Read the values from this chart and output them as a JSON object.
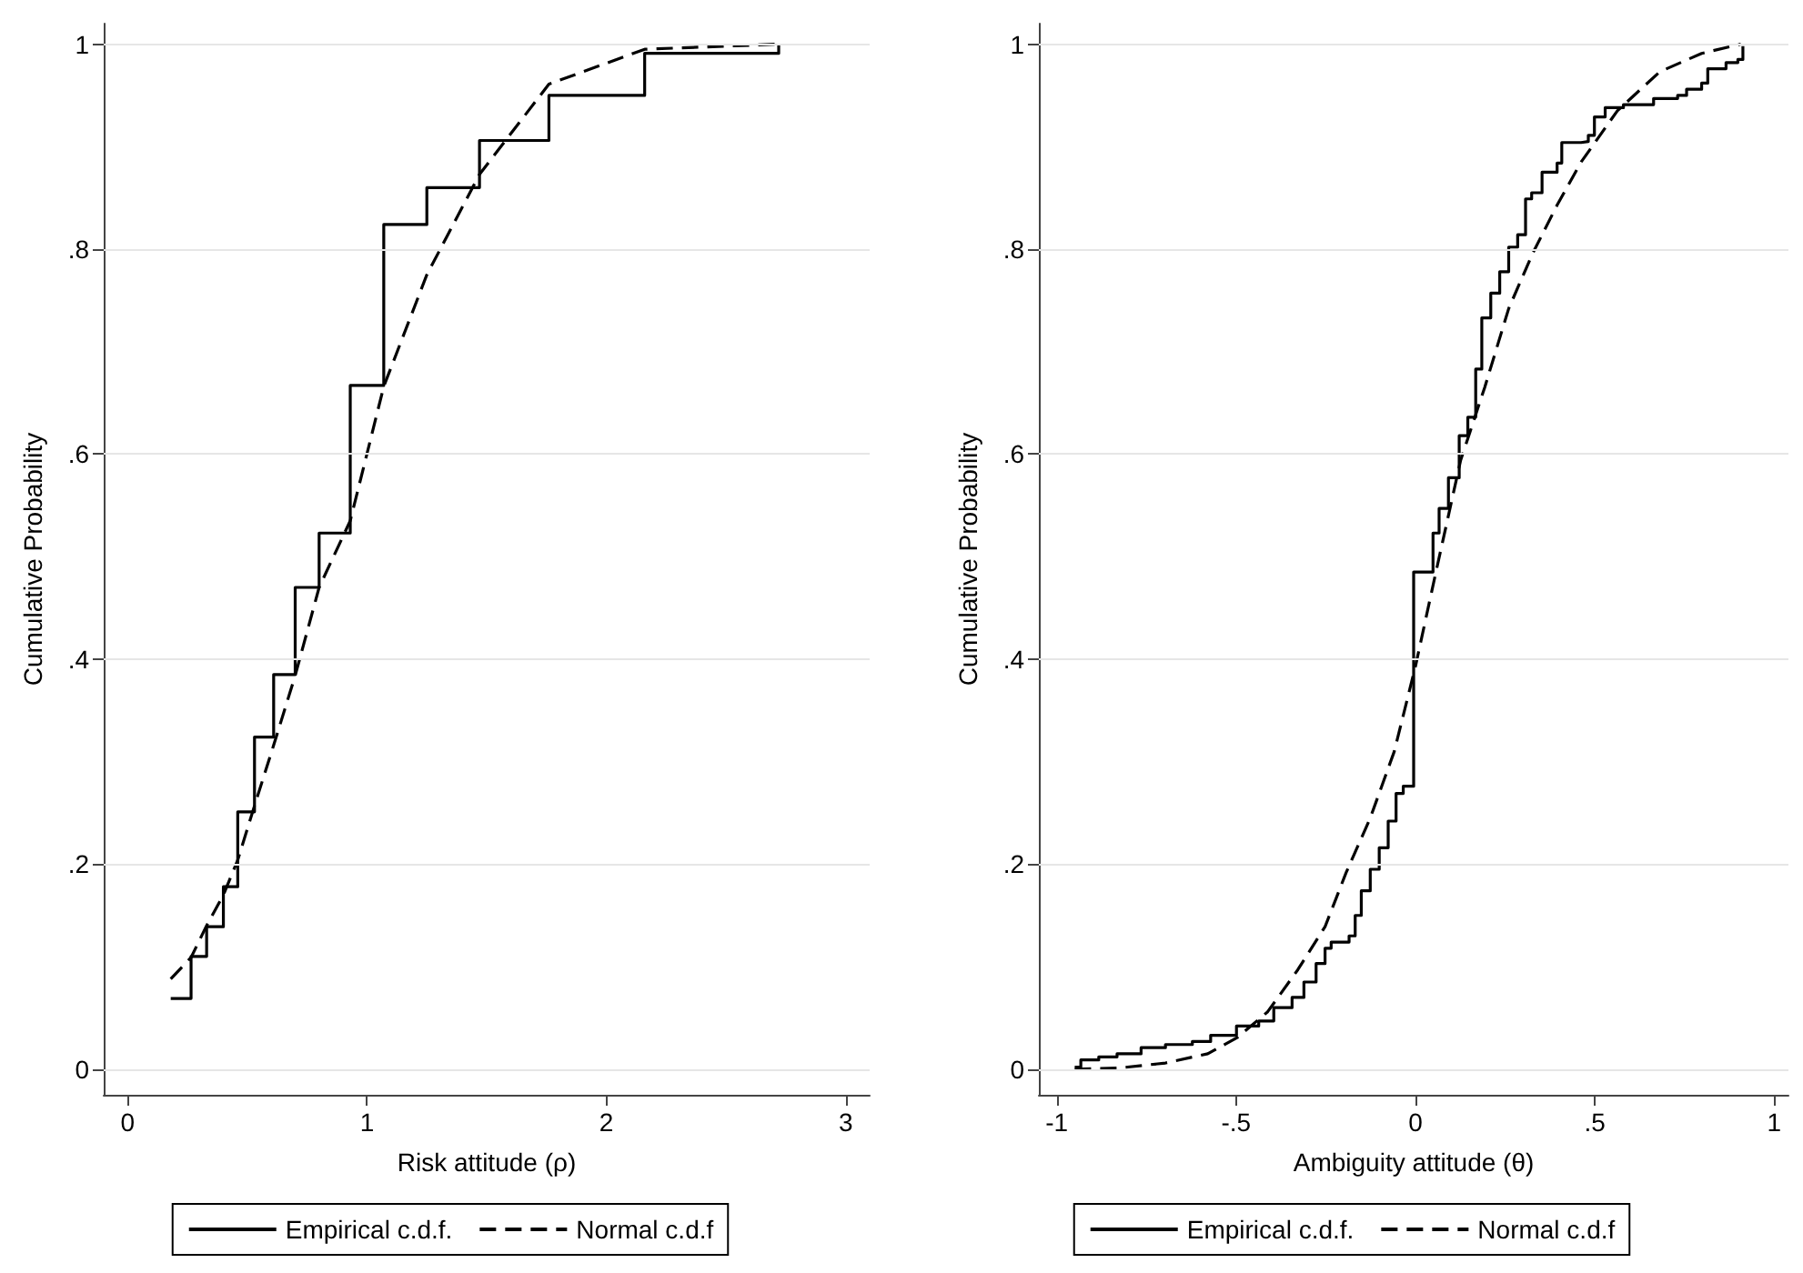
{
  "chart_data": [
    {
      "type": "step",
      "xlabel": "Risk attitude (ρ)",
      "ylabel": "Cumulative Probability",
      "xlim": [
        -0.1,
        3.1
      ],
      "xticks": [
        0,
        1,
        2,
        3
      ],
      "ylim": [
        -0.025,
        1.02
      ],
      "yticks": [
        {
          "value": 0,
          "label": "0"
        },
        {
          "value": 0.2,
          "label": ".2"
        },
        {
          "value": 0.4,
          "label": ".4"
        },
        {
          "value": 0.6,
          "label": ".6"
        },
        {
          "value": 0.8,
          "label": ".8"
        },
        {
          "value": 1,
          "label": "1"
        }
      ],
      "grid": "y",
      "legend": "bottom",
      "series": [
        {
          "name": "Empirical c.d.f.",
          "color": "#000000",
          "line_style": "solid",
          "x": [
            0.18,
            0.265,
            0.33,
            0.4,
            0.46,
            0.53,
            0.61,
            0.7,
            0.8,
            0.93,
            1.07,
            1.25,
            1.47,
            1.76,
            2.16,
            2.72
          ],
          "values": [
            0.069,
            0.11,
            0.139,
            0.178,
            0.251,
            0.324,
            0.385,
            0.47,
            0.523,
            0.667,
            0.824,
            0.86,
            0.906,
            0.95,
            0.991,
            1.0
          ]
        },
        {
          "name": "Normal c.d.f",
          "type": "line",
          "color": "#000000",
          "line_style": "dashed",
          "x": [
            0.18,
            0.265,
            0.33,
            0.4,
            0.46,
            0.53,
            0.61,
            0.7,
            0.8,
            0.93,
            1.07,
            1.25,
            1.47,
            1.76,
            2.16,
            2.72
          ],
          "values": [
            0.088,
            0.109,
            0.14,
            0.17,
            0.204,
            0.257,
            0.316,
            0.384,
            0.47,
            0.535,
            0.666,
            0.775,
            0.873,
            0.961,
            0.995,
            1.0
          ]
        }
      ]
    },
    {
      "type": "step",
      "xlabel": "Ambiguity attitude (θ)",
      "ylabel": "Cumulative Probability",
      "xlim": [
        -1.05,
        1.04
      ],
      "xticks": [
        -1,
        {
          "value": -0.5,
          "label": "-.5"
        },
        0,
        {
          "value": 0.5,
          "label": ".5"
        },
        1
      ],
      "ylim": [
        -0.025,
        1.02
      ],
      "yticks": [
        {
          "value": 0,
          "label": "0"
        },
        {
          "value": 0.2,
          "label": ".2"
        },
        {
          "value": 0.4,
          "label": ".4"
        },
        {
          "value": 0.6,
          "label": ".6"
        },
        {
          "value": 0.8,
          "label": ".8"
        },
        {
          "value": 1,
          "label": "1"
        }
      ],
      "grid": "y",
      "legend": "bottom",
      "series": [
        {
          "name": "Empirical c.d.f.",
          "color": "#000000",
          "line_style": "solid",
          "x": [
            -0.95,
            -0.933,
            -0.883,
            -0.832,
            -0.765,
            -0.697,
            -0.622,
            -0.571,
            -0.499,
            -0.437,
            -0.395,
            -0.344,
            -0.311,
            -0.277,
            -0.252,
            -0.235,
            -0.185,
            -0.168,
            -0.151,
            -0.126,
            -0.101,
            -0.076,
            -0.054,
            -0.034,
            -0.005,
            0.038,
            0.049,
            0.066,
            0.092,
            0.122,
            0.146,
            0.168,
            0.185,
            0.21,
            0.235,
            0.26,
            0.285,
            0.307,
            0.324,
            0.353,
            0.395,
            0.408,
            0.462,
            0.482,
            0.499,
            0.529,
            0.58,
            0.664,
            0.731,
            0.756,
            0.798,
            0.815,
            0.866,
            0.899,
            0.913
          ],
          "values": [
            0.002,
            0.009,
            0.012,
            0.015,
            0.021,
            0.024,
            0.027,
            0.033,
            0.042,
            0.047,
            0.06,
            0.07,
            0.085,
            0.103,
            0.118,
            0.124,
            0.13,
            0.15,
            0.174,
            0.195,
            0.216,
            0.242,
            0.269,
            0.276,
            0.485,
            0.485,
            0.523,
            0.547,
            0.577,
            0.618,
            0.636,
            0.683,
            0.733,
            0.757,
            0.778,
            0.802,
            0.814,
            0.849,
            0.855,
            0.875,
            0.884,
            0.904,
            0.905,
            0.911,
            0.929,
            0.938,
            0.941,
            0.947,
            0.95,
            0.956,
            0.962,
            0.976,
            0.982,
            0.985,
            0.998
          ]
        },
        {
          "name": "Normal c.d.f",
          "type": "line",
          "color": "#000000",
          "line_style": "dashed",
          "x": [
            -0.95,
            -0.83,
            -0.697,
            -0.579,
            -0.496,
            -0.412,
            -0.328,
            -0.252,
            -0.193,
            -0.126,
            -0.059,
            0,
            0.059,
            0.126,
            0.193,
            0.26,
            0.327,
            0.395,
            0.462,
            0.563,
            0.681,
            0.798,
            0.907
          ],
          "values": [
            0.0,
            0.001,
            0.006,
            0.015,
            0.031,
            0.056,
            0.097,
            0.139,
            0.192,
            0.245,
            0.31,
            0.393,
            0.488,
            0.594,
            0.665,
            0.742,
            0.796,
            0.843,
            0.885,
            0.935,
            0.973,
            0.991,
            1.0
          ]
        }
      ]
    }
  ]
}
